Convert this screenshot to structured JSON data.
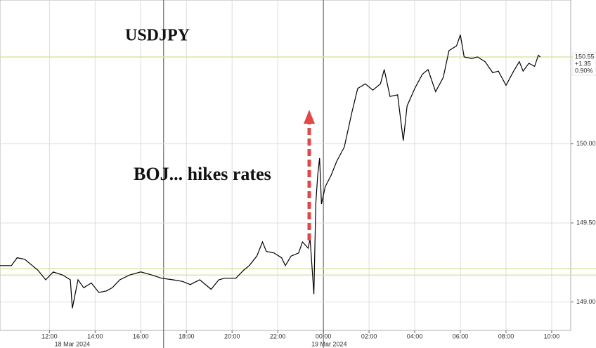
{
  "chart_data": {
    "type": "line",
    "title": "USDJPY",
    "annotation": "BOJ... hikes rates",
    "color": "#000000",
    "x": [
      "2024-03-18 09:50",
      "2024-03-18 10:20",
      "2024-03-18 10:35",
      "2024-03-18 10:55",
      "2024-03-18 11:15",
      "2024-03-18 11:30",
      "2024-03-18 11:50",
      "2024-03-18 12:10",
      "2024-03-18 12:35",
      "2024-03-18 12:55",
      "2024-03-18 13:00",
      "2024-03-18 13:15",
      "2024-03-18 13:30",
      "2024-03-18 13:50",
      "2024-03-18 14:10",
      "2024-03-18 14:30",
      "2024-03-18 14:45",
      "2024-03-18 15:05",
      "2024-03-18 15:30",
      "2024-03-18 16:00",
      "2024-03-18 16:30",
      "2024-03-18 16:55",
      "2024-03-18 17:25",
      "2024-03-18 17:50",
      "2024-03-18 18:10",
      "2024-03-18 18:35",
      "2024-03-18 19:05",
      "2024-03-18 19:25",
      "2024-03-18 19:40",
      "2024-03-18 20:10",
      "2024-03-18 20:30",
      "2024-03-18 20:45",
      "2024-03-18 21:05",
      "2024-03-18 21:20",
      "2024-03-18 21:30",
      "2024-03-18 21:50",
      "2024-03-18 22:10",
      "2024-03-18 22:20",
      "2024-03-18 22:35",
      "2024-03-18 22:55",
      "2024-03-18 23:05",
      "2024-03-18 23:20",
      "2024-03-18 23:25",
      "2024-03-18 23:35",
      "2024-03-18 23:40",
      "2024-03-18 23:45",
      "2024-03-18 23:50",
      "2024-03-18 23:55",
      "2024-03-19 00:05",
      "2024-03-19 00:20",
      "2024-03-19 00:35",
      "2024-03-19 00:55",
      "2024-03-19 01:15",
      "2024-03-19 01:30",
      "2024-03-19 01:50",
      "2024-03-19 02:10",
      "2024-03-19 02:30",
      "2024-03-19 02:40",
      "2024-03-19 02:55",
      "2024-03-19 03:15",
      "2024-03-19 03:30",
      "2024-03-19 03:40",
      "2024-03-19 04:00",
      "2024-03-19 04:20",
      "2024-03-19 04:35",
      "2024-03-19 04:55",
      "2024-03-19 05:15",
      "2024-03-19 05:30",
      "2024-03-19 05:50",
      "2024-03-19 06:00",
      "2024-03-19 06:10",
      "2024-03-19 06:30",
      "2024-03-19 06:45",
      "2024-03-19 07:05",
      "2024-03-19 07:25",
      "2024-03-19 07:40",
      "2024-03-19 08:00",
      "2024-03-19 08:20",
      "2024-03-19 08:35",
      "2024-03-19 08:45",
      "2024-03-19 09:00",
      "2024-03-19 09:15",
      "2024-03-19 09:25",
      "2024-03-19 09:30"
    ],
    "values": [
      149.23,
      149.23,
      149.28,
      149.27,
      149.23,
      149.2,
      149.14,
      149.19,
      149.17,
      149.14,
      148.96,
      149.14,
      149.09,
      149.12,
      149.06,
      149.07,
      149.09,
      149.14,
      149.17,
      149.19,
      149.17,
      149.15,
      149.14,
      149.13,
      149.11,
      149.14,
      149.08,
      149.14,
      149.15,
      149.15,
      149.2,
      149.23,
      149.29,
      149.38,
      149.32,
      149.31,
      149.28,
      149.23,
      149.29,
      149.31,
      149.38,
      149.34,
      149.4,
      149.05,
      149.62,
      149.8,
      149.91,
      149.62,
      149.73,
      149.8,
      149.89,
      149.98,
      150.2,
      150.35,
      150.38,
      150.34,
      150.38,
      150.47,
      150.3,
      150.31,
      150.02,
      150.24,
      150.35,
      150.44,
      150.47,
      150.33,
      150.42,
      150.59,
      150.62,
      150.69,
      150.55,
      150.54,
      150.55,
      150.52,
      150.45,
      150.46,
      150.37,
      150.46,
      150.52,
      150.46,
      150.51,
      150.49,
      150.56,
      150.55
    ],
    "xlim": [
      "2024-03-18 09:50",
      "2024-03-19 10:50"
    ],
    "xticks": [
      {
        "value": "2024-03-18 12:00",
        "label": "12:00"
      },
      {
        "value": "2024-03-18 14:00",
        "label": "14:00"
      },
      {
        "value": "2024-03-18 16:00",
        "label": "16:00"
      },
      {
        "value": "2024-03-18 18:00",
        "label": "18:00"
      },
      {
        "value": "2024-03-18 20:00",
        "label": "20:00"
      },
      {
        "value": "2024-03-18 22:00",
        "label": "22:00"
      },
      {
        "value": "2024-03-19 00:00",
        "label": "00:00"
      },
      {
        "value": "2024-03-19 02:00",
        "label": "02:00"
      },
      {
        "value": "2024-03-19 04:00",
        "label": "04:00"
      },
      {
        "value": "2024-03-19 06:00",
        "label": "06:00"
      },
      {
        "value": "2024-03-19 08:00",
        "label": "08:00"
      },
      {
        "value": "2024-03-19 10:00",
        "label": "10:00"
      }
    ],
    "date_labels": [
      {
        "value": "2024-03-18 13:00",
        "label": "18 Mar 2024"
      },
      {
        "value": "2024-03-19 00:15",
        "label": "19 Mar 2024"
      }
    ],
    "date_separators": [
      "2024-03-18 17:00",
      "2024-03-19 00:00"
    ],
    "ylim": [
      148.82,
      150.91
    ],
    "yticks": [
      {
        "value": 149,
        "label": "149.00"
      },
      {
        "value": 149.5,
        "label": "149.50"
      },
      {
        "value": 150,
        "label": "150.00"
      }
    ],
    "reference_lines": [
      150.55,
      149.21,
      149.17
    ],
    "last_labels": [
      "150.55",
      "+1.35",
      "0.90%"
    ],
    "grid": true
  }
}
